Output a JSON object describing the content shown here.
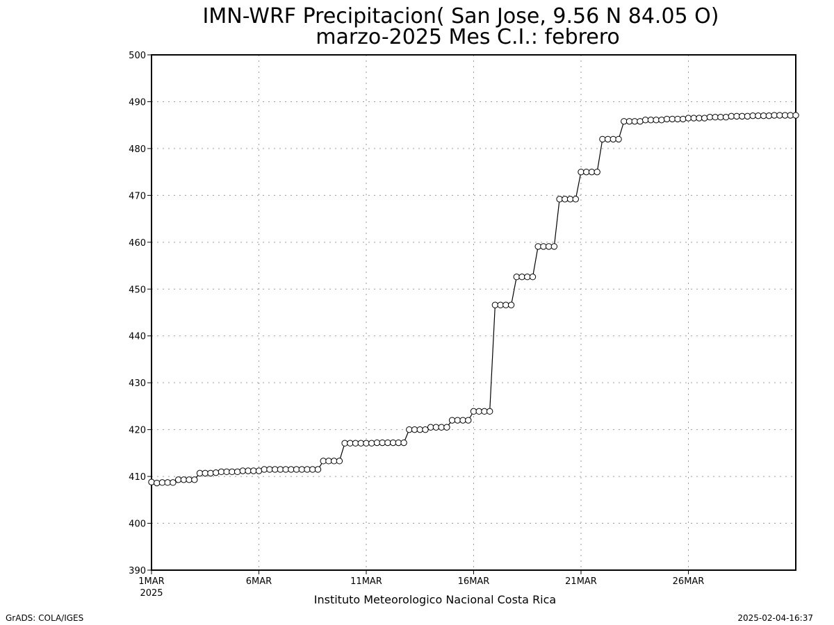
{
  "chart_data": {
    "type": "line",
    "title": "IMN-WRF  Precipitacion( San Jose, 9.56  N 84.05  O)",
    "subtitle": "marzo-2025 Mes C.I.: febrero",
    "xlabel": "",
    "ylabel": "",
    "x_ticks": [
      "1MAR",
      "6MAR",
      "11MAR",
      "16MAR",
      "21MAR",
      "26MAR"
    ],
    "x_tick_days": [
      1,
      6,
      11,
      16,
      21,
      26
    ],
    "x_year_label": "2025",
    "xlim_days": [
      1,
      31
    ],
    "ylim": [
      390,
      500
    ],
    "y_ticks": [
      390,
      400,
      410,
      420,
      430,
      440,
      450,
      460,
      470,
      480,
      490,
      500
    ],
    "grid": true,
    "marker": "open-circle",
    "series": [
      {
        "values": [
          408.8,
          408.6,
          408.7,
          408.7,
          408.7,
          409.3,
          409.3,
          409.3,
          409.3,
          410.7,
          410.7,
          410.7,
          410.8,
          411.0,
          411.0,
          411.0,
          411.0,
          411.2,
          411.2,
          411.2,
          411.2,
          411.5,
          411.5,
          411.5,
          411.5,
          411.5,
          411.5,
          411.5,
          411.5,
          411.5,
          411.5,
          411.5,
          413.3,
          413.3,
          413.3,
          413.3,
          417.1,
          417.1,
          417.1,
          417.1,
          417.1,
          417.1,
          417.2,
          417.2,
          417.2,
          417.2,
          417.2,
          417.2,
          420.0,
          420.0,
          420.0,
          420.0,
          420.5,
          420.5,
          420.5,
          420.5,
          422.0,
          422.0,
          422.0,
          422.0,
          423.9,
          423.9,
          423.9,
          423.9,
          446.6,
          446.6,
          446.6,
          446.6,
          452.6,
          452.6,
          452.6,
          452.6,
          459.1,
          459.1,
          459.1,
          459.1,
          469.2,
          469.2,
          469.2,
          469.2,
          475.0,
          475.0,
          475.0,
          475.0,
          482.0,
          482.0,
          482.0,
          482.0,
          485.8,
          485.8,
          485.8,
          485.8,
          486.1,
          486.1,
          486.1,
          486.1,
          486.3,
          486.3,
          486.3,
          486.3,
          486.5,
          486.5,
          486.5,
          486.5,
          486.7,
          486.7,
          486.7,
          486.7,
          486.9,
          486.9,
          486.9,
          486.9,
          487.0,
          487.0,
          487.0,
          487.0,
          487.1,
          487.1,
          487.1,
          487.1,
          487.1
        ]
      }
    ]
  },
  "footer": {
    "institution": "Instituto Meteorologico Nacional Costa Rica",
    "left_credit": "GrADS: COLA/IGES",
    "timestamp": "2025-02-04-16:37"
  }
}
